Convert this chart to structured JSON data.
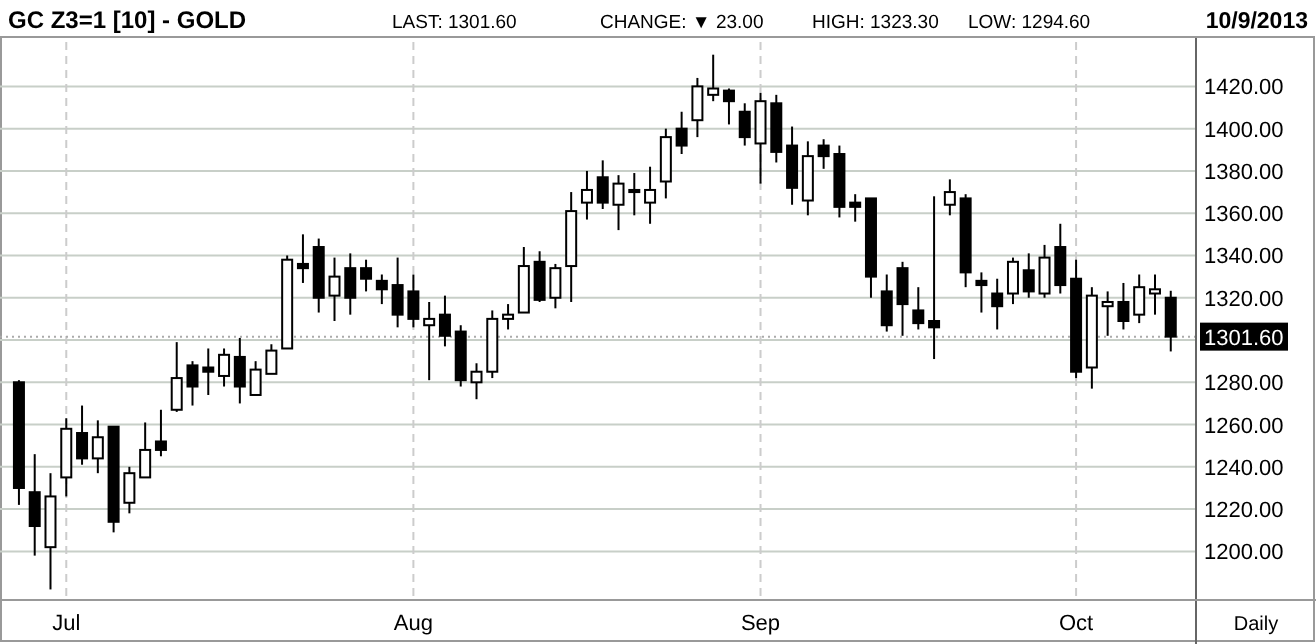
{
  "chart_data": {
    "type": "candlestick",
    "title": "GC Z3=1 [10] - GOLD",
    "annotations": [
      "LAST: 1301.60",
      "CHANGE: ▼ 23.00",
      "HIGH: 1323.30",
      "LOW: 1294.60",
      "10/9/2013",
      "Daily"
    ],
    "categories": [
      null,
      null,
      null,
      "Jul",
      null,
      null,
      null,
      null,
      null,
      null,
      null,
      null,
      null,
      null,
      null,
      null,
      null,
      null,
      null,
      null,
      null,
      null,
      null,
      null,
      null,
      "Aug",
      null,
      null,
      null,
      null,
      null,
      null,
      null,
      null,
      null,
      null,
      null,
      null,
      null,
      null,
      null,
      null,
      null,
      null,
      null,
      null,
      null,
      "Sep",
      null,
      null,
      null,
      null,
      null,
      null,
      null,
      null,
      null,
      null,
      null,
      null,
      null,
      null,
      null,
      null,
      null,
      null,
      null,
      "Oct",
      null,
      null,
      null,
      null,
      null,
      null
    ],
    "ohlc": [
      [
        1280,
        1281,
        1222,
        1230
      ],
      [
        1228,
        1246,
        1198,
        1212
      ],
      [
        1202,
        1237,
        1182,
        1226
      ],
      [
        1235,
        1263,
        1226,
        1258
      ],
      [
        1256,
        1269,
        1241,
        1244
      ],
      [
        1244,
        1262,
        1237,
        1254
      ],
      [
        1259,
        1259,
        1209,
        1214
      ],
      [
        1223,
        1240,
        1218,
        1237
      ],
      [
        1235,
        1261,
        1235,
        1248
      ],
      [
        1252,
        1267,
        1245,
        1248
      ],
      [
        1267,
        1299,
        1266,
        1282
      ],
      [
        1288,
        1290,
        1269,
        1278
      ],
      [
        1287,
        1296,
        1274,
        1285
      ],
      [
        1283,
        1296,
        1278,
        1293
      ],
      [
        1292,
        1301,
        1270,
        1278
      ],
      [
        1274,
        1290,
        1274,
        1286
      ],
      [
        1284,
        1298,
        1284,
        1295
      ],
      [
        1296,
        1340,
        1296,
        1338
      ],
      [
        1336,
        1350,
        1327,
        1334
      ],
      [
        1344,
        1348,
        1313,
        1320
      ],
      [
        1321,
        1339,
        1309,
        1330
      ],
      [
        1334,
        1341,
        1312,
        1320
      ],
      [
        1334,
        1338,
        1323,
        1329
      ],
      [
        1328,
        1331,
        1317,
        1324
      ],
      [
        1326,
        1339,
        1306,
        1312
      ],
      [
        1323,
        1331,
        1306,
        1310
      ],
      [
        1307,
        1318,
        1281,
        1310
      ],
      [
        1312,
        1321,
        1297,
        1302
      ],
      [
        1304,
        1307,
        1278,
        1281
      ],
      [
        1280,
        1289,
        1272,
        1285
      ],
      [
        1285,
        1314,
        1282,
        1310
      ],
      [
        1310,
        1317,
        1305,
        1312
      ],
      [
        1313,
        1344,
        1313,
        1335
      ],
      [
        1337,
        1342,
        1318,
        1319
      ],
      [
        1320,
        1336,
        1315,
        1334
      ],
      [
        1335,
        1370,
        1318,
        1361
      ],
      [
        1365,
        1380,
        1357,
        1371
      ],
      [
        1377,
        1385,
        1362,
        1365
      ],
      [
        1364,
        1378,
        1352,
        1374
      ],
      [
        1371,
        1379,
        1359,
        1370
      ],
      [
        1365,
        1382,
        1355,
        1371
      ],
      [
        1375,
        1400,
        1367,
        1396
      ],
      [
        1400,
        1408,
        1388,
        1392
      ],
      [
        1404,
        1424,
        1396,
        1420
      ],
      [
        1416,
        1435,
        1413,
        1419
      ],
      [
        1418,
        1419,
        1402,
        1413
      ],
      [
        1408,
        1412,
        1392,
        1396
      ],
      [
        1393,
        1417,
        1374,
        1413
      ],
      [
        1412,
        1416,
        1384,
        1389
      ],
      [
        1392,
        1401,
        1364,
        1372
      ],
      [
        1366,
        1394,
        1359,
        1387
      ],
      [
        1392,
        1395,
        1381,
        1387
      ],
      [
        1388,
        1392,
        1358,
        1363
      ],
      [
        1365,
        1369,
        1356,
        1363
      ],
      [
        1367,
        1367,
        1320,
        1330
      ],
      [
        1323,
        1331,
        1304,
        1307
      ],
      [
        1334,
        1337,
        1302,
        1317
      ],
      [
        1314,
        1325,
        1305,
        1308
      ],
      [
        1309,
        1368,
        1291,
        1306
      ],
      [
        1364,
        1376,
        1359,
        1370
      ],
      [
        1367,
        1369,
        1325,
        1332
      ],
      [
        1328,
        1332,
        1313,
        1326
      ],
      [
        1322,
        1329,
        1305,
        1316
      ],
      [
        1322,
        1339,
        1317,
        1337
      ],
      [
        1333,
        1341,
        1320,
        1323
      ],
      [
        1322,
        1345,
        1320,
        1339
      ],
      [
        1344,
        1355,
        1322,
        1326
      ],
      [
        1329,
        1338,
        1282,
        1285
      ],
      [
        1287,
        1325,
        1277,
        1321
      ],
      [
        1316,
        1323,
        1302,
        1318
      ],
      [
        1318,
        1327,
        1305,
        1309
      ],
      [
        1312,
        1331,
        1308,
        1325
      ],
      [
        1322,
        1331,
        1312,
        1324
      ],
      [
        1320,
        1323.3,
        1294.6,
        1301.6
      ]
    ],
    "color": "#000000",
    "ylim": [
      1177,
      1441
    ],
    "yticks": [
      {
        "value": 1200,
        "label": "1200.00"
      },
      {
        "value": 1220,
        "label": "1220.00"
      },
      {
        "value": 1240,
        "label": "1240.00"
      },
      {
        "value": 1260,
        "label": "1260.00"
      },
      {
        "value": 1280,
        "label": "1280.00"
      },
      {
        "value": 1300,
        "label": null
      },
      {
        "value": 1320,
        "label": "1320.00"
      },
      {
        "value": 1340,
        "label": "1340.00"
      },
      {
        "value": 1360,
        "label": "1360.00"
      },
      {
        "value": 1380,
        "label": "1380.00"
      },
      {
        "value": 1400,
        "label": "1400.00"
      },
      {
        "value": 1420,
        "label": "1420.00"
      }
    ],
    "grid": true,
    "ref_lines": [
      {
        "axis": "y",
        "value": 1301.6,
        "label": "1301.60",
        "color": "#aaaaaa",
        "line_style": "dotted"
      }
    ]
  }
}
